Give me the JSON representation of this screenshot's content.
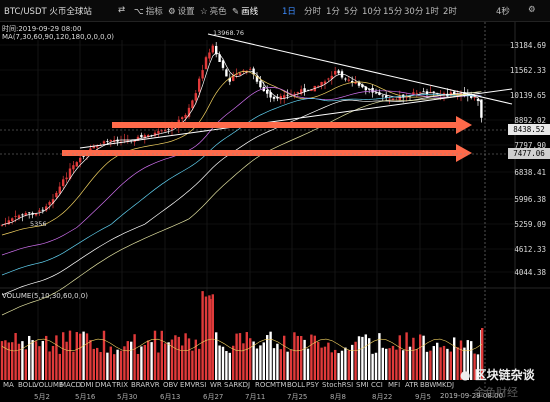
{
  "header": {
    "pair": "BTC/USDT 火币全球站",
    "tools": [
      {
        "icon": "trend-icon",
        "glyph": "⇄",
        "label": ""
      },
      {
        "icon": "indicator-icon",
        "glyph": "⌥",
        "label": "指标"
      },
      {
        "icon": "gear-icon",
        "glyph": "⚙",
        "label": "设置"
      },
      {
        "icon": "star-icon",
        "glyph": "☆",
        "label": "亮色"
      },
      {
        "icon": "pen-icon",
        "glyph": "✎",
        "label": "画线"
      }
    ],
    "timeframes": [
      "1日",
      "分时",
      "1分",
      "5分",
      "10分",
      "15分",
      "30分",
      "1时",
      "2时"
    ],
    "more": "4秒",
    "settings_glyph": "⚙"
  },
  "info": {
    "time": "时间:2019-09-29 08:00",
    "ma": "MA(7,30,60,90,120,180,0,0,0,0)",
    "volume": "VOLUME(5,10,30,60,0,0)"
  },
  "price_axis": [
    "13184.69",
    "11562.33",
    "10139.65",
    "8892.02",
    "7797.90",
    "6838.41",
    "5996.38",
    "5259.09",
    "4612.33",
    "4044.38"
  ],
  "price_tags": {
    "current": "8438.52",
    "level": "7477.06"
  },
  "annotations": {
    "high": "13968.76",
    "low": "5356"
  },
  "bottom_indicators": [
    "MA",
    "BOLL",
    "VOLUME",
    "MACD",
    "DMI",
    "DMA",
    "TRIX",
    "BRAR",
    "VR",
    "OBV",
    "EMV",
    "RSI",
    "WR",
    "SAR",
    "KDJ",
    "ROC",
    "MTM",
    "BOLL",
    "PSY",
    "StochRSI",
    "SMI",
    "CCI",
    "MFI",
    "ATR",
    "BBW",
    "MKDJ"
  ],
  "dates": [
    "5月2",
    "5月16",
    "5月30",
    "6月13",
    "6月27",
    "7月11",
    "7月25",
    "8月8",
    "8月22",
    "9月5"
  ],
  "date_cursor": "2019-09-29 08:00",
  "watermark": {
    "brand": "区块链杂谈",
    "faint": "金色财经"
  },
  "colors": {
    "up": "#e03a3a",
    "down": "#ffffff",
    "arrow": "#ff6a4a",
    "accent": "#3c8cff"
  }
}
